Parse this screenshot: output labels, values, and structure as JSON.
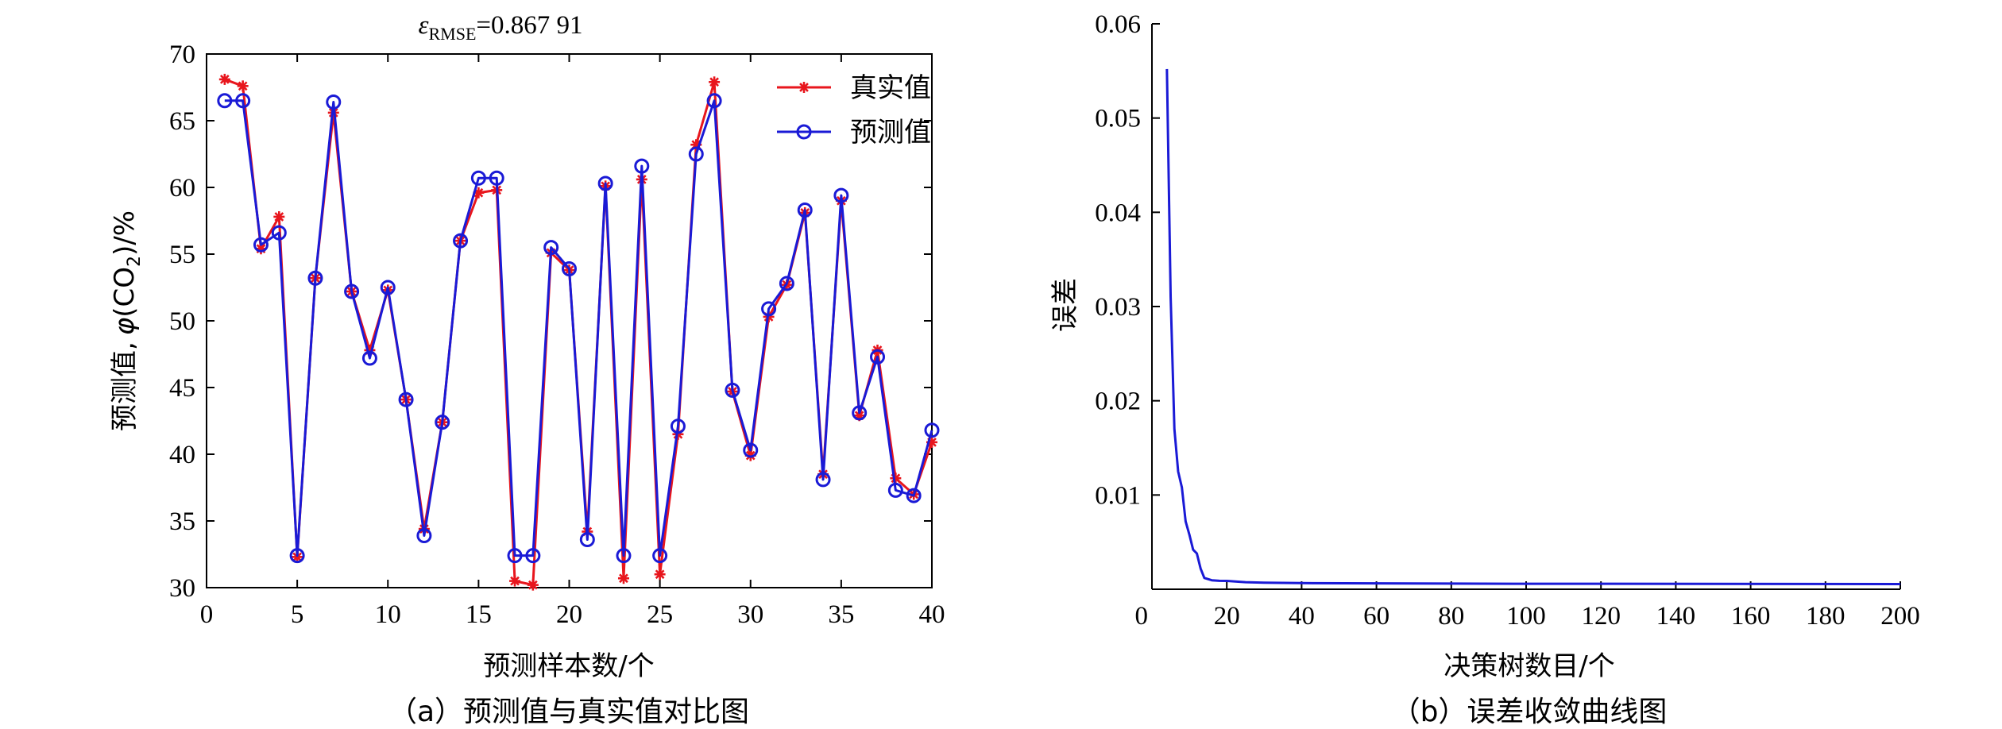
{
  "chart_data": [
    {
      "type": "line",
      "title": "0.867 91",
      "title_symbol": "ε",
      "title_subscript": "RMSE",
      "xlabel": "预测样本数/个",
      "ylabel": "预测值, φ(CO₂)/%",
      "ylabel_parts": {
        "text": "预测值,",
        "sym": "φ",
        "open": "(",
        "chem": "CO",
        "chem_sub": "2",
        "close": ")",
        "unit": "/%"
      },
      "caption": "（a）预测值与真实值对比图",
      "xlim": [
        0,
        40
      ],
      "ylim": [
        30,
        70
      ],
      "xticks": [
        "0",
        "5",
        "10",
        "15",
        "20",
        "25",
        "30",
        "35",
        "40"
      ],
      "yticks": [
        "30",
        "35",
        "40",
        "45",
        "50",
        "55",
        "60",
        "65",
        "70"
      ],
      "legend_position": "top-right",
      "x": [
        1,
        2,
        3,
        4,
        5,
        6,
        7,
        8,
        9,
        10,
        11,
        12,
        13,
        14,
        15,
        16,
        17,
        18,
        19,
        20,
        21,
        22,
        23,
        24,
        25,
        26,
        27,
        28,
        29,
        30,
        31,
        32,
        33,
        34,
        35,
        36,
        37,
        38,
        39,
        40
      ],
      "series": [
        {
          "name": "真实值",
          "color": "#e8161d",
          "marker": "asterisk",
          "values": [
            68.1,
            67.6,
            55.4,
            57.8,
            32.3,
            53.2,
            65.6,
            52.2,
            47.8,
            52.3,
            44.1,
            34.4,
            42.4,
            56.0,
            59.6,
            59.8,
            30.5,
            30.2,
            55.1,
            53.8,
            34.2,
            60.1,
            30.7,
            60.6,
            31.0,
            41.5,
            63.2,
            67.9,
            44.7,
            39.9,
            50.3,
            52.7,
            58.1,
            38.5,
            59.0,
            42.9,
            47.8,
            38.2,
            37.0,
            40.9
          ]
        },
        {
          "name": "预测值",
          "color": "#1a1ad6",
          "marker": "circle",
          "values": [
            66.5,
            66.5,
            55.7,
            56.6,
            32.4,
            53.2,
            66.4,
            52.2,
            47.2,
            52.5,
            44.1,
            33.9,
            42.4,
            56.0,
            60.7,
            60.7,
            32.4,
            32.4,
            55.5,
            53.9,
            33.6,
            60.3,
            32.4,
            61.6,
            32.4,
            42.1,
            62.5,
            66.5,
            44.8,
            40.3,
            50.9,
            52.8,
            58.3,
            38.1,
            59.4,
            43.1,
            47.3,
            37.3,
            36.9,
            41.8
          ]
        }
      ]
    },
    {
      "type": "line",
      "title": "",
      "xlabel": "决策树数目/个",
      "ylabel": "误差",
      "caption": "（b）误差收敛曲线图",
      "xlim": [
        0,
        200
      ],
      "ylim": [
        0,
        0.06
      ],
      "xticks": [
        "0",
        "20",
        "40",
        "60",
        "80",
        "100",
        "120",
        "140",
        "160",
        "180",
        "200"
      ],
      "yticks": [
        "0.01",
        "0.02",
        "0.03",
        "0.04",
        "0.05",
        "0.06"
      ],
      "series": [
        {
          "color": "#1a1ad6",
          "x": [
            4,
            5,
            6,
            7,
            8,
            9,
            10,
            11,
            12,
            13,
            14,
            16,
            18,
            20,
            25,
            30,
            40,
            60,
            80,
            100,
            150,
            200
          ],
          "values": [
            0.0552,
            0.031,
            0.017,
            0.0125,
            0.0108,
            0.0072,
            0.0058,
            0.0042,
            0.0038,
            0.0022,
            0.0012,
            0.00095,
            0.0009,
            0.00088,
            0.00075,
            0.0007,
            0.00065,
            0.00062,
            0.0006,
            0.00058,
            0.00057,
            0.00055
          ]
        }
      ]
    }
  ]
}
